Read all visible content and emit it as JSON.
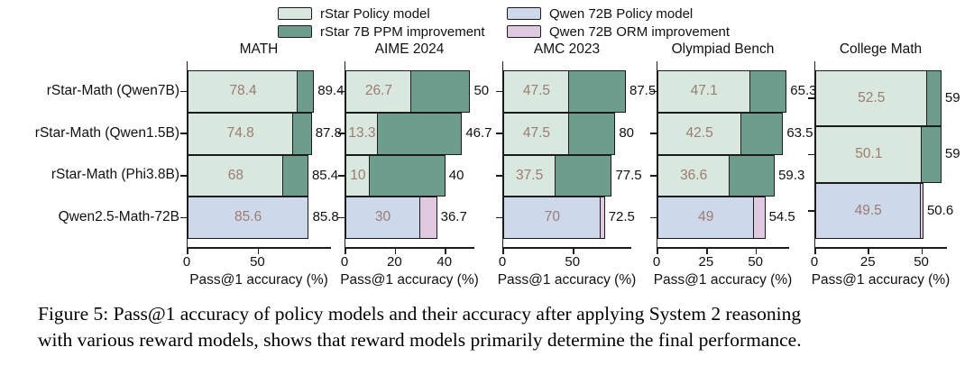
{
  "legend": {
    "items": [
      {
        "label": "rStar Policy model",
        "color_key": "rstar_policy"
      },
      {
        "label": "rStar 7B PPM improvement",
        "color_key": "rstar_ppm"
      },
      {
        "label": "Qwen 72B Policy model",
        "color_key": "qwen_policy"
      },
      {
        "label": "Qwen 72B ORM improvement",
        "color_key": "qwen_orm"
      }
    ]
  },
  "colors": {
    "rstar_policy": "#d8e8de",
    "rstar_ppm": "#6e9c8d",
    "qwen_policy": "#cdd9ea",
    "qwen_orm": "#dfc9e1",
    "bar_border": "#1b1b1b",
    "value_label": "#9c7b72",
    "total_label": "#111111"
  },
  "row_labels": [
    "rStar-Math (Qwen7B)",
    "rStar-Math (Qwen1.5B)",
    "rStar-Math (Phi3.8B)",
    "Qwen2.5-Math-72B"
  ],
  "chart_data": [
    {
      "type": "bar",
      "orientation": "horizontal",
      "title": "MATH",
      "xlabel": "Pass@1 accuracy (%)",
      "xlim": [
        0,
        102
      ],
      "xticks": [
        {
          "value": 0,
          "label": "0"
        },
        {
          "value": 50,
          "label": "50"
        }
      ],
      "rows": [
        {
          "model": "rStar-Math (Qwen7B)",
          "kind": "rstar",
          "policy": 78.4,
          "final": 89.4,
          "policy_label": "78.4",
          "final_label": "89.4"
        },
        {
          "model": "rStar-Math (Qwen1.5B)",
          "kind": "rstar",
          "policy": 74.8,
          "final": 87.8,
          "policy_label": "74.8",
          "final_label": "87.8"
        },
        {
          "model": "rStar-Math (Phi3.8B)",
          "kind": "rstar",
          "policy": 68,
          "final": 85.4,
          "policy_label": "68",
          "final_label": "85.4"
        },
        {
          "model": "Qwen2.5-Math-72B",
          "kind": "qwen",
          "policy": 85.6,
          "final": 85.8,
          "policy_label": "85.6",
          "final_label": "85.8"
        }
      ]
    },
    {
      "type": "bar",
      "orientation": "horizontal",
      "title": "AIME 2024",
      "xlabel": "Pass@1 accuracy (%)",
      "xlim": [
        0,
        52
      ],
      "xticks": [
        {
          "value": 0,
          "label": "0"
        },
        {
          "value": 20,
          "label": "20"
        },
        {
          "value": 40,
          "label": "40"
        }
      ],
      "rows": [
        {
          "model": "rStar-Math (Qwen7B)",
          "kind": "rstar",
          "policy": 26.7,
          "final": 50,
          "policy_label": "26.7",
          "final_label": "50"
        },
        {
          "model": "rStar-Math (Qwen1.5B)",
          "kind": "rstar",
          "policy": 13.3,
          "final": 46.7,
          "policy_label": "13.3",
          "final_label": "46.7"
        },
        {
          "model": "rStar-Math (Phi3.8B)",
          "kind": "rstar",
          "policy": 10,
          "final": 40,
          "policy_label": "10",
          "final_label": "40"
        },
        {
          "model": "Qwen2.5-Math-72B",
          "kind": "qwen",
          "policy": 30,
          "final": 36.7,
          "policy_label": "30",
          "final_label": "36.7"
        }
      ]
    },
    {
      "type": "bar",
      "orientation": "horizontal",
      "title": "AMC 2023",
      "xlabel": "Pass@1 accuracy (%)",
      "xlim": [
        0,
        92
      ],
      "xticks": [
        {
          "value": 0,
          "label": "0"
        },
        {
          "value": 50,
          "label": "50"
        }
      ],
      "rows": [
        {
          "model": "rStar-Math (Qwen7B)",
          "kind": "rstar",
          "policy": 47.5,
          "final": 87.5,
          "policy_label": "47.5",
          "final_label": "87.5"
        },
        {
          "model": "rStar-Math (Qwen1.5B)",
          "kind": "rstar",
          "policy": 47.5,
          "final": 80,
          "policy_label": "47.5",
          "final_label": "80"
        },
        {
          "model": "rStar-Math (Phi3.8B)",
          "kind": "rstar",
          "policy": 37.5,
          "final": 77.5,
          "policy_label": "37.5",
          "final_label": "77.5"
        },
        {
          "model": "Qwen2.5-Math-72B",
          "kind": "qwen",
          "policy": 70,
          "final": 72.5,
          "policy_label": "70",
          "final_label": "72.5"
        }
      ]
    },
    {
      "type": "bar",
      "orientation": "horizontal",
      "title": "Olympiad Bench",
      "xlabel": "Pass@1 accuracy (%)",
      "xlim": [
        0,
        67
      ],
      "xticks": [
        {
          "value": 0,
          "label": "0"
        },
        {
          "value": 25,
          "label": "25"
        },
        {
          "value": 50,
          "label": "50"
        }
      ],
      "rows": [
        {
          "model": "rStar-Math (Qwen7B)",
          "kind": "rstar",
          "policy": 47.1,
          "final": 65.3,
          "policy_label": "47.1",
          "final_label": "65.3"
        },
        {
          "model": "rStar-Math (Qwen1.5B)",
          "kind": "rstar",
          "policy": 42.5,
          "final": 63.5,
          "policy_label": "42.5",
          "final_label": "63.5"
        },
        {
          "model": "rStar-Math (Phi3.8B)",
          "kind": "rstar",
          "policy": 36.6,
          "final": 59.3,
          "policy_label": "36.6",
          "final_label": "59.3"
        },
        {
          "model": "Qwen2.5-Math-72B",
          "kind": "qwen",
          "policy": 49,
          "final": 54.5,
          "policy_label": "49",
          "final_label": "54.5"
        }
      ]
    },
    {
      "type": "bar",
      "orientation": "horizontal",
      "title": "College Math",
      "xlabel": "Pass@1 accuracy (%)",
      "xlim": [
        0,
        62
      ],
      "xticks": [
        {
          "value": 0,
          "label": "0"
        },
        {
          "value": 25,
          "label": "25"
        },
        {
          "value": 50,
          "label": "50"
        }
      ],
      "rows": [
        {
          "model": "rStar-Math (Qwen7B)",
          "kind": "rstar",
          "policy": 52.5,
          "final": 59,
          "policy_label": "52.5",
          "final_label": "59"
        },
        {
          "model": "rStar-Math (Qwen1.5B)",
          "kind": "rstar",
          "policy": 50.1,
          "final": 59,
          "policy_label": "50.1",
          "final_label": "59"
        },
        {
          "model": "Qwen2.5-Math-72B",
          "kind": "qwen",
          "policy": 49.5,
          "final": 50.6,
          "policy_label": "49.5",
          "final_label": "50.6"
        }
      ]
    }
  ],
  "caption": {
    "line1": "Figure 5: Pass@1 accuracy of policy models and their accuracy after applying System 2 reasoning",
    "line2": "with various reward models, shows that reward models primarily determine the final performance."
  }
}
